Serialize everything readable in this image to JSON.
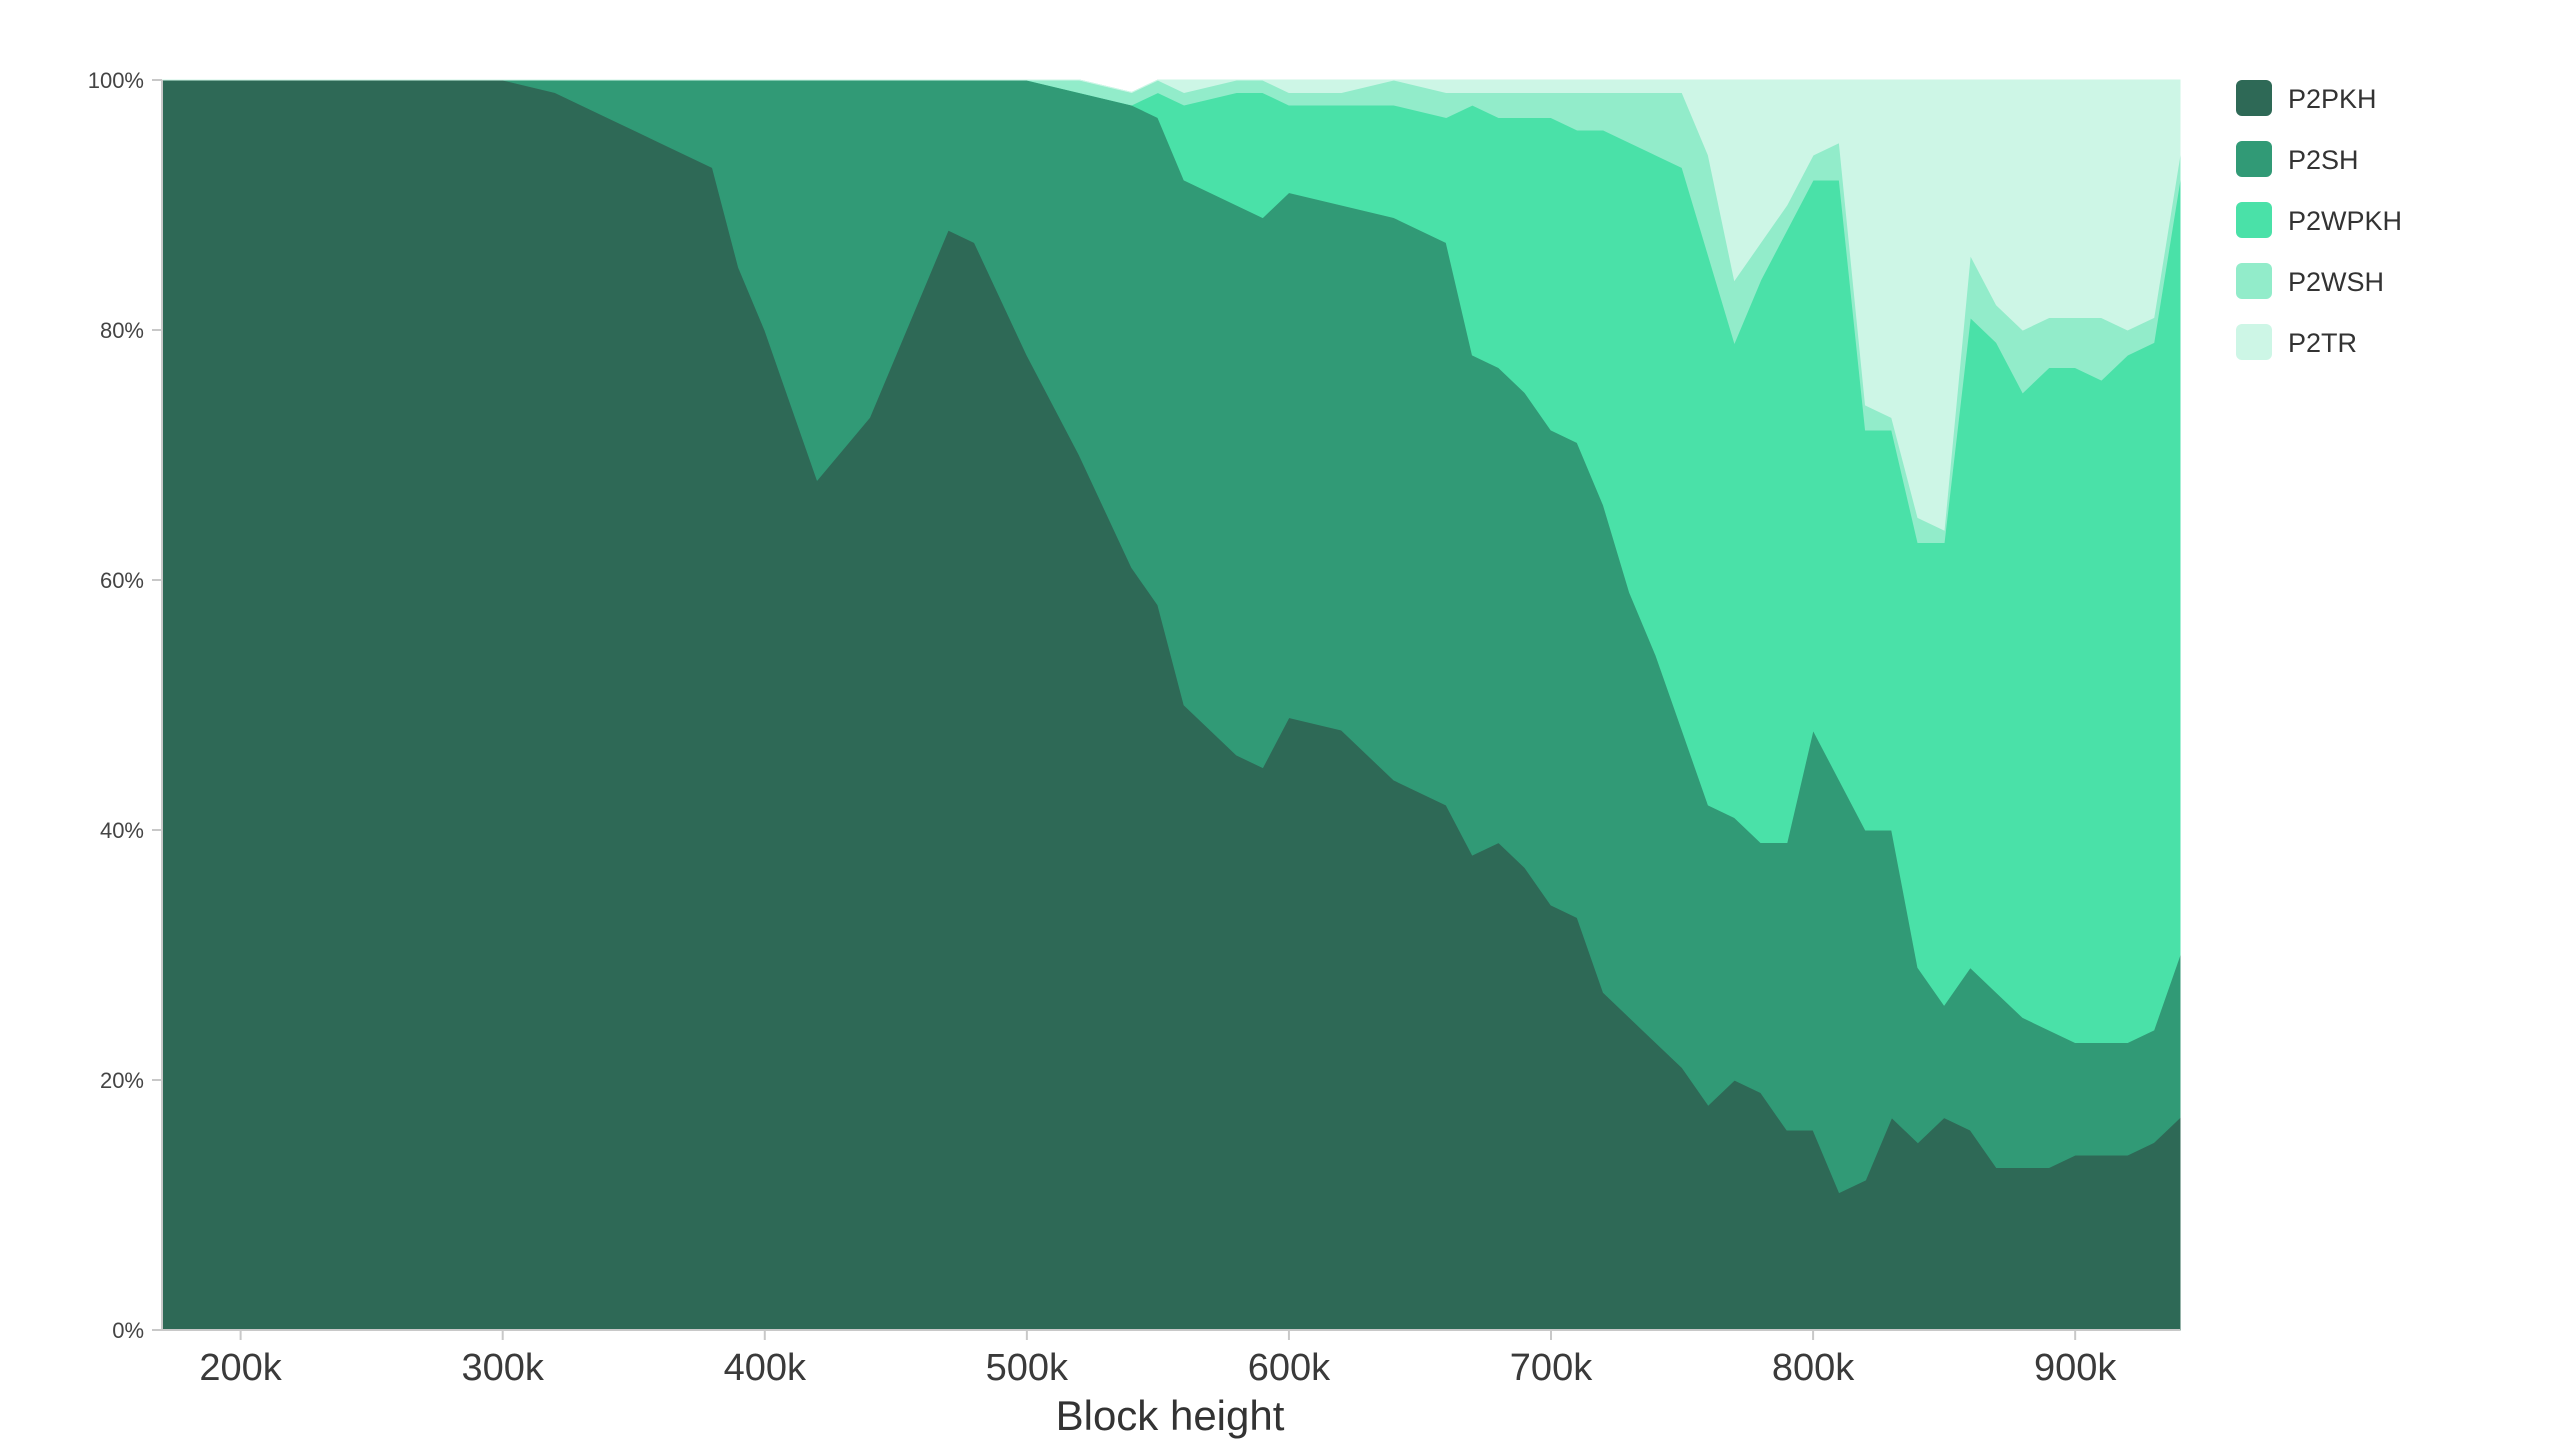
{
  "chart_data": {
    "type": "area",
    "stacked": true,
    "normalized": true,
    "title": "",
    "xlabel": "Block height",
    "ylabel": "",
    "xlim": [
      170000,
      940000
    ],
    "ylim": [
      0,
      100
    ],
    "x_ticks": [
      {
        "value": 200000,
        "label": "200k"
      },
      {
        "value": 300000,
        "label": "300k"
      },
      {
        "value": 400000,
        "label": "400k"
      },
      {
        "value": 500000,
        "label": "500k"
      },
      {
        "value": 600000,
        "label": "600k"
      },
      {
        "value": 700000,
        "label": "700k"
      },
      {
        "value": 800000,
        "label": "800k"
      },
      {
        "value": 900000,
        "label": "900k"
      }
    ],
    "y_ticks": [
      {
        "value": 0,
        "label": "0%"
      },
      {
        "value": 20,
        "label": "20%"
      },
      {
        "value": 40,
        "label": "40%"
      },
      {
        "value": 60,
        "label": "60%"
      },
      {
        "value": 80,
        "label": "80%"
      },
      {
        "value": 100,
        "label": "100%"
      }
    ],
    "grid": false,
    "legend_position": "top-right",
    "x": [
      170000,
      200000,
      250000,
      300000,
      320000,
      340000,
      360000,
      380000,
      390000,
      400000,
      420000,
      440000,
      460000,
      470000,
      480000,
      500000,
      520000,
      540000,
      550000,
      560000,
      580000,
      590000,
      600000,
      620000,
      640000,
      660000,
      670000,
      680000,
      690000,
      700000,
      710000,
      720000,
      730000,
      740000,
      750000,
      760000,
      770000,
      780000,
      790000,
      800000,
      810000,
      820000,
      830000,
      840000,
      850000,
      860000,
      870000,
      880000,
      890000,
      900000,
      910000,
      920000,
      930000,
      940000
    ],
    "series": [
      {
        "name": "P2PKH",
        "color": "#2e6956",
        "values": [
          100,
          100,
          100,
          100,
          99,
          97,
          95,
          93,
          85,
          80,
          68,
          73,
          83,
          88,
          87,
          78,
          70,
          61,
          58,
          50,
          46,
          45,
          49,
          48,
          44,
          42,
          38,
          39,
          37,
          34,
          33,
          27,
          25,
          23,
          21,
          18,
          20,
          19,
          16,
          16,
          11,
          12,
          17,
          15,
          17,
          16,
          13,
          13,
          13,
          14,
          14,
          14,
          15,
          17
        ]
      },
      {
        "name": "P2SH",
        "color": "#319a76",
        "values": [
          0,
          0,
          0,
          0,
          1,
          3,
          5,
          7,
          15,
          20,
          32,
          27,
          17,
          12,
          13,
          22,
          29,
          37,
          39,
          42,
          44,
          44,
          42,
          42,
          45,
          45,
          40,
          38,
          38,
          38,
          38,
          39,
          34,
          31,
          27,
          24,
          21,
          20,
          23,
          32,
          33,
          28,
          23,
          14,
          9,
          13,
          14,
          12,
          11,
          9,
          9,
          9,
          9,
          13
        ]
      },
      {
        "name": "P2WPKH",
        "color": "#4ae1a8",
        "values": [
          0,
          0,
          0,
          0,
          0,
          0,
          0,
          0,
          0,
          0,
          0,
          0,
          0,
          0,
          0,
          0,
          0,
          0,
          2,
          6,
          9,
          10,
          7,
          8,
          9,
          10,
          20,
          20,
          22,
          25,
          25,
          30,
          36,
          40,
          45,
          44,
          38,
          45,
          49,
          44,
          48,
          32,
          32,
          34,
          37,
          52,
          52,
          50,
          53,
          54,
          53,
          55,
          55,
          62
        ]
      },
      {
        "name": "P2WSH",
        "color": "#92ecca",
        "values": [
          0,
          0,
          0,
          0,
          0,
          0,
          0,
          0,
          0,
          0,
          0,
          0,
          0,
          0,
          0,
          0,
          1,
          1,
          1,
          1,
          1,
          1,
          1,
          1,
          2,
          2,
          1,
          2,
          2,
          2,
          3,
          3,
          4,
          5,
          6,
          8,
          5,
          3,
          2,
          2,
          3,
          2,
          1,
          2,
          1,
          5,
          3,
          5,
          4,
          4,
          5,
          2,
          2,
          2
        ]
      },
      {
        "name": "P2TR",
        "color": "#cdf6e6",
        "values": [
          0,
          0,
          0,
          0,
          0,
          0,
          0,
          0,
          0,
          0,
          0,
          0,
          0,
          0,
          0,
          0,
          0,
          0,
          0,
          1,
          0,
          0,
          1,
          1,
          0,
          1,
          1,
          1,
          1,
          1,
          1,
          1,
          1,
          1,
          1,
          6,
          16,
          13,
          10,
          6,
          5,
          26,
          27,
          35,
          36,
          14,
          18,
          20,
          19,
          19,
          19,
          20,
          19,
          6
        ]
      }
    ]
  }
}
